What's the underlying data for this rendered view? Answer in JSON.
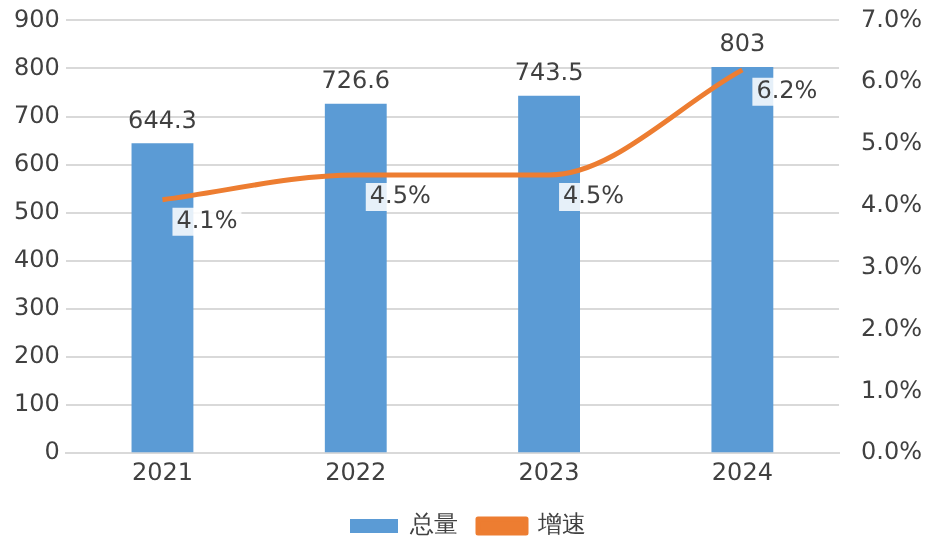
{
  "chart_data": {
    "type": "bar",
    "categories": [
      "2021",
      "2022",
      "2023",
      "2024"
    ],
    "series": [
      {
        "name": "总量",
        "color": "#5b9bd5",
        "values": [
          644.3,
          726.6,
          743.5,
          803
        ],
        "value_labels": [
          "644.3",
          "726.6",
          "743.5",
          "803"
        ]
      },
      {
        "name": "增速",
        "type": "line",
        "axis": "y2",
        "color": "#ed7d31",
        "values": [
          4.1,
          4.5,
          4.5,
          6.2
        ],
        "value_labels": [
          "4.1%",
          "4.5%",
          "4.5%",
          "6.2%"
        ],
        "marker": "none"
      }
    ],
    "ylim": [
      0,
      900
    ],
    "yticks": [
      0,
      100,
      200,
      300,
      400,
      500,
      600,
      700,
      800,
      900
    ],
    "y2lim": [
      0,
      7
    ],
    "y2ticks": [
      {
        "value": 0,
        "label": "0.0%"
      },
      {
        "value": 1,
        "label": "1.0%"
      },
      {
        "value": 2,
        "label": "2.0%"
      },
      {
        "value": 3,
        "label": "3.0%"
      },
      {
        "value": 4,
        "label": "4.0%"
      },
      {
        "value": 5,
        "label": "5.0%"
      },
      {
        "value": 6,
        "label": "6.0%"
      },
      {
        "value": 7,
        "label": "7.0%"
      }
    ],
    "grid": "y",
    "legend": "bottom"
  }
}
